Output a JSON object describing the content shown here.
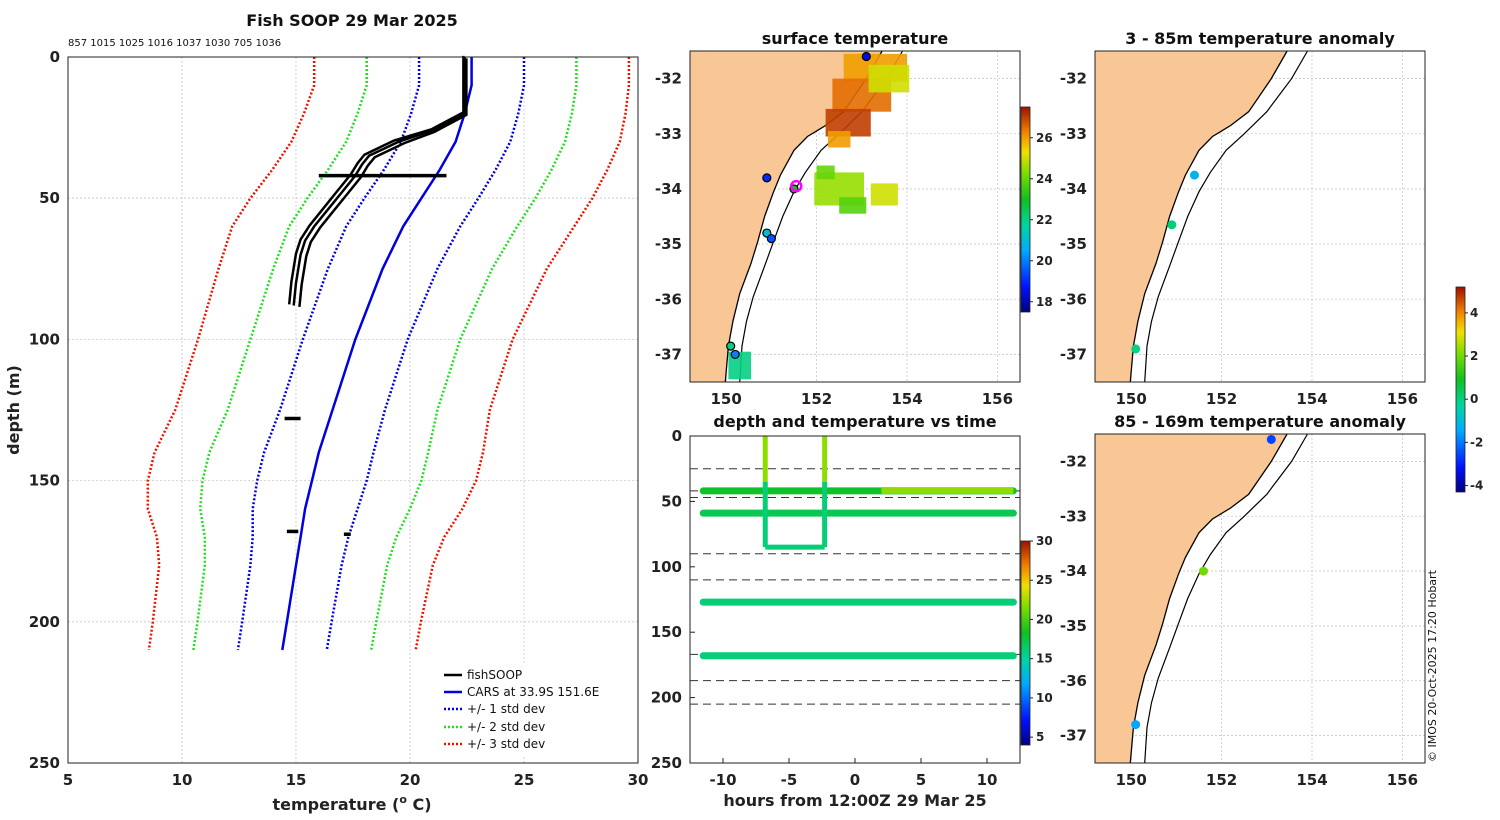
{
  "chart_data": [
    {
      "type": "line",
      "title": "Fish SOOP 29 Mar 2025",
      "subtitle": "857 1015 1025 1016 1037 1030 705 1036",
      "xlabel": "temperature (",
      "xlabel_sup": "o",
      "xlabel_end": " C)",
      "ylabel": "depth (m)",
      "xlim": [
        5,
        30
      ],
      "ylim": [
        0,
        250
      ],
      "xticks": [
        5,
        10,
        15,
        20,
        25,
        30
      ],
      "yticks": [
        0,
        50,
        100,
        150,
        200,
        250
      ],
      "depths": [
        0,
        10,
        20,
        30,
        40,
        50,
        60,
        75,
        100,
        125,
        140,
        150,
        160,
        170,
        180,
        200,
        210
      ],
      "cars_mean": [
        22.7,
        22.7,
        22.4,
        22.0,
        21.3,
        20.5,
        19.7,
        18.8,
        17.6,
        16.6,
        16.0,
        15.7,
        15.4,
        15.2,
        15.0,
        14.6,
        14.4
      ],
      "std": [
        2.3,
        2.3,
        2.35,
        2.4,
        2.45,
        2.5,
        2.5,
        2.4,
        2.3,
        2.3,
        2.4,
        2.4,
        2.3,
        2.1,
        2.0,
        1.96,
        1.95
      ],
      "series": [
        {
          "name": "fishSOOP",
          "color": "#000000",
          "style": "solid"
        },
        {
          "name": "CARS at 33.9S 151.6E",
          "color": "#0000e0",
          "style": "solid"
        },
        {
          "name": "+/- 1 std dev",
          "color": "#0000e0",
          "style": "dotted"
        },
        {
          "name": "+/- 2 std dev",
          "color": "#22dd22",
          "style": "dotted"
        },
        {
          "name": "+/- 3 std dev",
          "color": "#ee1100",
          "style": "dotted"
        }
      ],
      "fishsoop_profile": {
        "depths": [
          0,
          20,
          26,
          30,
          35,
          38,
          42,
          48,
          55,
          60,
          65,
          70,
          80,
          88
        ],
        "temps": [
          22.4,
          22.4,
          21.0,
          19.5,
          18.2,
          17.9,
          17.6,
          17.0,
          16.3,
          15.8,
          15.4,
          15.2,
          15.0,
          14.9
        ]
      },
      "fishsoop_events": [
        {
          "depth": 42,
          "t0": 16.0,
          "t1": 21.6
        },
        {
          "depth": 128,
          "t0": 14.5,
          "t1": 15.2
        },
        {
          "depth": 168,
          "t0": 14.6,
          "t1": 15.1
        },
        {
          "depth": 169,
          "t0": 17.1,
          "t1": 17.4
        }
      ]
    },
    {
      "type": "map",
      "title": "surface temperature",
      "lon_range": [
        149.2,
        156.5
      ],
      "lat_range": [
        -37.5,
        -31.5
      ],
      "xticks": [
        150,
        152,
        154,
        156
      ],
      "yticks": [
        -32,
        -33,
        -34,
        -35,
        -36,
        -37
      ],
      "colorbar": {
        "min": 17.5,
        "max": 27.5,
        "ticks": [
          18,
          20,
          22,
          24,
          26
        ]
      },
      "points": [
        {
          "lon": 153.1,
          "lat": -31.6,
          "value": 18.5
        },
        {
          "lon": 150.9,
          "lat": -33.8,
          "value": 19.0
        },
        {
          "lon": 151.5,
          "lat": -34.0,
          "value": 23.0
        },
        {
          "lon": 150.9,
          "lat": -34.8,
          "value": 21.0
        },
        {
          "lon": 151.0,
          "lat": -34.9,
          "value": 19.5
        },
        {
          "lon": 150.1,
          "lat": -36.85,
          "value": 22.0
        },
        {
          "lon": 150.2,
          "lat": -37.0,
          "value": 20.0
        }
      ]
    },
    {
      "type": "scatter",
      "title": "depth and temperature vs time",
      "xlabel": "hours from 12:00Z 29 Mar 25",
      "xlim": [
        -12.5,
        12.5
      ],
      "ylim": [
        0,
        250
      ],
      "xticks": [
        -10,
        -5,
        0,
        5,
        10
      ],
      "yticks": [
        0,
        50,
        100,
        150,
        200,
        250
      ],
      "colorbar": {
        "min": 4,
        "max": 30,
        "ticks": [
          5,
          10,
          15,
          20,
          25,
          30
        ]
      },
      "dashed_depths": [
        25,
        42,
        47,
        90,
        110,
        167,
        187,
        205
      ],
      "tracks": [
        {
          "depth": 42,
          "x0": -11.5,
          "x1": 12,
          "value": 18
        },
        {
          "depth": 59,
          "x0": -11.5,
          "x1": 12,
          "value": 17
        },
        {
          "depth": 127,
          "x0": -11.5,
          "x1": 12,
          "value": 16
        },
        {
          "depth": 168,
          "x0": -11.5,
          "x1": 12,
          "value": 16
        }
      ],
      "cast": {
        "x_down": -6.8,
        "x_up": -2.3,
        "depth": 85,
        "value_top": 22,
        "value_bottom": 16
      }
    },
    {
      "type": "map",
      "title": "3 - 85m temperature anomaly",
      "lon_range": [
        149.2,
        156.5
      ],
      "lat_range": [
        -37.5,
        -31.5
      ],
      "xticks": [
        150,
        152,
        154,
        156
      ],
      "yticks": [
        -32,
        -33,
        -34,
        -35,
        -36,
        -37
      ],
      "points": [
        {
          "lon": 151.4,
          "lat": -33.75,
          "value": -1.2
        },
        {
          "lon": 150.9,
          "lat": -34.65,
          "value": 0.1
        },
        {
          "lon": 150.1,
          "lat": -36.9,
          "value": 0.0
        }
      ]
    },
    {
      "type": "map",
      "title": "85 - 169m temperature anomaly",
      "lon_range": [
        149.2,
        156.5
      ],
      "lat_range": [
        -37.5,
        -31.5
      ],
      "xticks": [
        150,
        152,
        154,
        156
      ],
      "yticks": [
        -32,
        -33,
        -34,
        -35,
        -36,
        -37
      ],
      "colorbar": {
        "min": -4.3,
        "max": 5.2,
        "ticks": [
          -4,
          -2,
          0,
          2,
          4
        ]
      },
      "points": [
        {
          "lon": 153.1,
          "lat": -31.6,
          "value": -2.6
        },
        {
          "lon": 151.6,
          "lat": -34.0,
          "value": 2.0
        },
        {
          "lon": 150.1,
          "lat": -36.8,
          "value": -1.5
        }
      ]
    }
  ],
  "credit": "© IMOS 20-Oct-2025 17:20 Hobart",
  "colors": {
    "land": "#f9c795",
    "coast": "#000000"
  }
}
